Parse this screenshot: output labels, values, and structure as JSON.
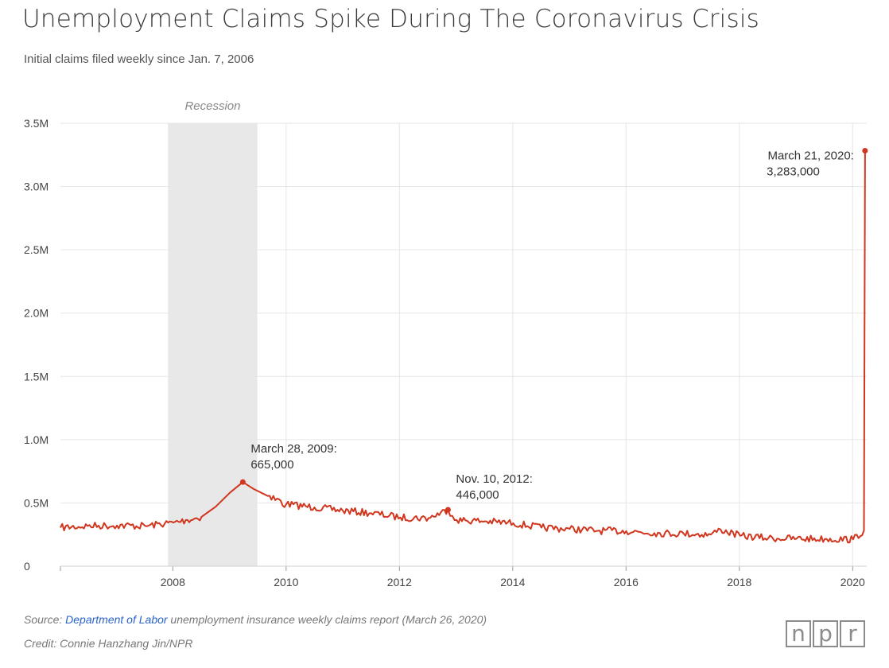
{
  "header": {
    "title": "Unemployment Claims Spike During The Coronavirus Crisis",
    "subtitle": "Initial claims filed weekly since Jan. 7, 2006"
  },
  "footer": {
    "source_prefix": "Source: ",
    "source_link": "Department of Labor",
    "source_suffix": " unemployment insurance weekly claims report (March 26, 2020)",
    "credit": "Credit: Connie Hanzhang Jin/NPR",
    "logo_letters": [
      "n",
      "p",
      "r"
    ]
  },
  "chart_data": {
    "type": "line",
    "title": "Unemployment Claims Spike During The Coronavirus Crisis",
    "subtitle": "Initial claims filed weekly since Jan. 7, 2006",
    "xlabel": "",
    "ylabel": "",
    "xlim": [
      "2006-01-07",
      "2020-03-21"
    ],
    "ylim": [
      0,
      3500000
    ],
    "grid": true,
    "line_color": "#d1361e",
    "x_ticks": [
      "2008",
      "2010",
      "2012",
      "2014",
      "2016",
      "2018",
      "2020"
    ],
    "y_ticks": [
      {
        "value": 0,
        "label": "0"
      },
      {
        "value": 500000,
        "label": "0.5M"
      },
      {
        "value": 1000000,
        "label": "1.0M"
      },
      {
        "value": 1500000,
        "label": "1.5M"
      },
      {
        "value": 2000000,
        "label": "2.0M"
      },
      {
        "value": 2500000,
        "label": "2.5M"
      },
      {
        "value": 3000000,
        "label": "3.0M"
      },
      {
        "value": 3500000,
        "label": "3.5M"
      }
    ],
    "shaded_regions": [
      {
        "label": "Recession",
        "start": "2007-12-01",
        "end": "2009-06-30",
        "color": "#e8e8e8"
      }
    ],
    "series": [
      {
        "values": [
          {
            "date": "2006-01-07",
            "value": 305000
          },
          {
            "date": "2006-07-01",
            "value": 318000
          },
          {
            "date": "2007-01-06",
            "value": 322000
          },
          {
            "date": "2007-07-07",
            "value": 318000
          },
          {
            "date": "2008-01-05",
            "value": 345000
          },
          {
            "date": "2008-04-05",
            "value": 365000
          },
          {
            "date": "2008-07-05",
            "value": 390000
          },
          {
            "date": "2008-10-04",
            "value": 470000
          },
          {
            "date": "2009-01-03",
            "value": 580000
          },
          {
            "date": "2009-03-28",
            "value": 665000
          },
          {
            "date": "2009-06-06",
            "value": 610000
          },
          {
            "date": "2009-09-05",
            "value": 555000
          },
          {
            "date": "2010-01-02",
            "value": 490000
          },
          {
            "date": "2010-07-03",
            "value": 465000
          },
          {
            "date": "2011-01-01",
            "value": 440000
          },
          {
            "date": "2011-07-02",
            "value": 420000
          },
          {
            "date": "2012-01-07",
            "value": 385000
          },
          {
            "date": "2012-07-07",
            "value": 380000
          },
          {
            "date": "2012-11-10",
            "value": 446000
          },
          {
            "date": "2013-01-05",
            "value": 365000
          },
          {
            "date": "2013-07-06",
            "value": 355000
          },
          {
            "date": "2014-01-04",
            "value": 340000
          },
          {
            "date": "2014-07-05",
            "value": 305000
          },
          {
            "date": "2015-01-03",
            "value": 295000
          },
          {
            "date": "2015-07-04",
            "value": 280000
          },
          {
            "date": "2016-01-02",
            "value": 278000
          },
          {
            "date": "2016-07-02",
            "value": 262000
          },
          {
            "date": "2017-01-07",
            "value": 258000
          },
          {
            "date": "2017-07-01",
            "value": 250000
          },
          {
            "date": "2017-09-02",
            "value": 290000
          },
          {
            "date": "2018-01-06",
            "value": 240000
          },
          {
            "date": "2018-07-07",
            "value": 222000
          },
          {
            "date": "2019-01-05",
            "value": 218000
          },
          {
            "date": "2019-07-06",
            "value": 215000
          },
          {
            "date": "2020-01-04",
            "value": 212000
          },
          {
            "date": "2020-03-14",
            "value": 282000
          },
          {
            "date": "2020-03-21",
            "value": 3283000
          }
        ]
      }
    ],
    "annotations": [
      {
        "date": "2009-03-28",
        "value": 665000,
        "line1": "March 28, 2009:",
        "line2": "665,000",
        "anchor": "start"
      },
      {
        "date": "2012-11-10",
        "value": 446000,
        "line1": "Nov. 10, 2012:",
        "line2": "446,000",
        "anchor": "start"
      },
      {
        "date": "2020-03-21",
        "value": 3283000,
        "line1": "March 21, 2020:",
        "line2": "3,283,000",
        "anchor": "end"
      }
    ]
  }
}
